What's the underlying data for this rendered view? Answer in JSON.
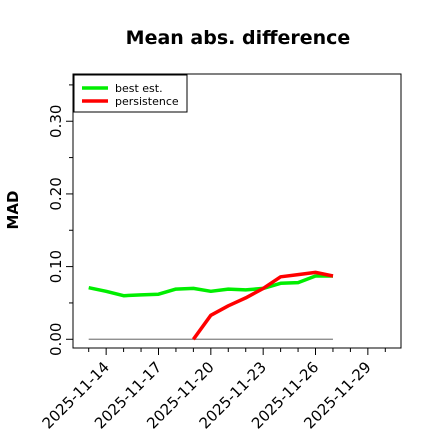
{
  "chart_data": {
    "type": "line",
    "title": "Mean abs. difference",
    "xlabel": "",
    "ylabel": "MAD",
    "x_tick_labels": [
      "2025-11-14",
      "2025-11-17",
      "2025-11-20",
      "2025-11-23",
      "2025-11-26",
      "2025-11-29"
    ],
    "x_tick_days": [
      14,
      17,
      20,
      23,
      26,
      29
    ],
    "y_ticks": [
      0.0,
      0.1,
      0.2,
      0.3
    ],
    "y_tick_labels": [
      "0.00",
      "0.10",
      "0.20",
      "0.30"
    ],
    "xlim": [
      12.1,
      30.9
    ],
    "ylim": [
      -0.012,
      0.365
    ],
    "legend_position": "top-left",
    "grid": false,
    "series": [
      {
        "name": "best est.",
        "color": "#00ee00",
        "x": [
          13,
          14,
          15,
          16,
          17,
          18,
          19,
          20,
          21,
          22,
          23,
          24,
          25,
          26,
          27
        ],
        "y": [
          0.071,
          0.066,
          0.06,
          0.061,
          0.062,
          0.069,
          0.07,
          0.066,
          0.069,
          0.068,
          0.07,
          0.077,
          0.078,
          0.087,
          0.087
        ]
      },
      {
        "name": "persistence",
        "color": "#ff0000",
        "x": [
          19,
          20,
          21,
          22,
          23,
          24,
          25,
          26,
          27
        ],
        "y": [
          0.0,
          0.033,
          0.046,
          0.057,
          0.07,
          0.086,
          0.089,
          0.092,
          0.087
        ]
      }
    ],
    "baseline": {
      "y": 0.0,
      "x": [
        13,
        27
      ],
      "color": "#808080"
    }
  }
}
